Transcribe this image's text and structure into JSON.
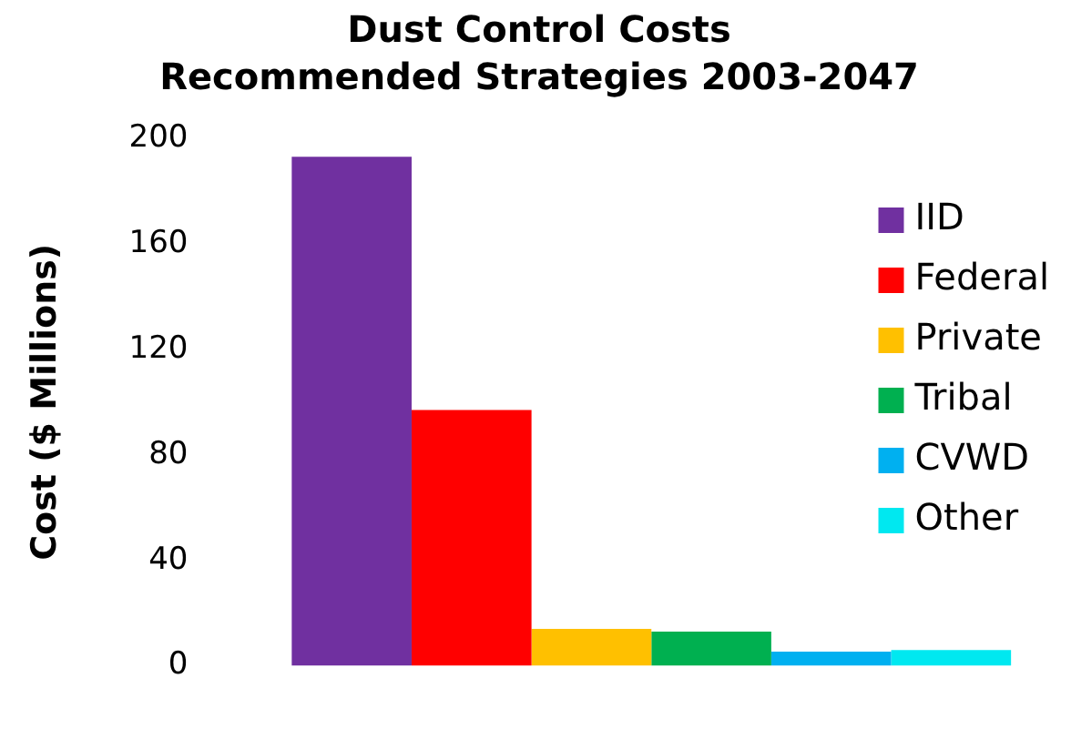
{
  "chart_data": {
    "type": "bar",
    "title": "Dust Control Costs",
    "subtitle": "Recommended Strategies 2003-2047",
    "ylabel": "Cost ($ Millions)",
    "categories": [
      null
    ],
    "series": [
      {
        "name": "IID",
        "color": "#7030a0",
        "values": [
          193
        ]
      },
      {
        "name": "Federal",
        "color": "#ff0000",
        "values": [
          97
        ]
      },
      {
        "name": "Private",
        "color": "#ffc000",
        "values": [
          14
        ]
      },
      {
        "name": "Tribal",
        "color": "#00b050",
        "values": [
          13
        ]
      },
      {
        "name": "CVWD",
        "color": "#00b0f0",
        "values": [
          5.4
        ]
      },
      {
        "name": "Other",
        "color": "#00e8f0",
        "values": [
          6
        ]
      }
    ],
    "ylim": [
      0,
      200
    ],
    "yticks": [
      0,
      40,
      80,
      120,
      160,
      200
    ],
    "grid": false,
    "legend": "top right"
  }
}
